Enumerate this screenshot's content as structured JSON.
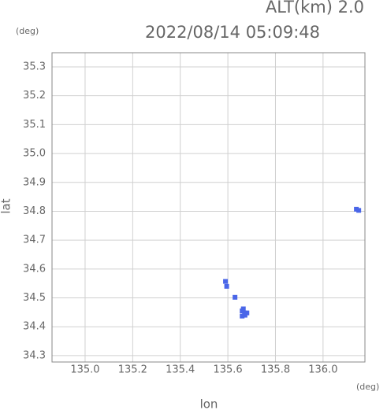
{
  "chart_data": {
    "type": "scatter",
    "title": "2022/08/14 05:09:48",
    "subtitle": "ALT(km) 2.0",
    "x_label": "lon",
    "y_label": "lat",
    "x_unit": "(deg)",
    "y_unit": "(deg)",
    "x": [
      136.14,
      136.15,
      135.59,
      135.595,
      135.63,
      135.66,
      135.67,
      135.68,
      135.665,
      135.66,
      135.672
    ],
    "values": [
      34.807,
      34.803,
      34.557,
      34.54,
      34.502,
      34.455,
      34.448,
      34.448,
      34.462,
      34.437,
      34.44
    ],
    "color": "#4a66e8",
    "xlim": [
      134.861,
      136.176
    ],
    "ylim": [
      34.278,
      35.349
    ],
    "xticks": [
      {
        "value": 135.0,
        "label": "135.0"
      },
      135.2,
      135.4,
      135.6,
      135.8,
      {
        "value": 136.0,
        "label": "136.0"
      }
    ],
    "yticks": [
      34.3,
      34.4,
      34.5,
      34.6,
      34.7,
      34.8,
      34.9,
      {
        "value": 35.0,
        "label": "35.0"
      },
      35.1,
      35.2,
      35.3
    ],
    "grid": true
  }
}
